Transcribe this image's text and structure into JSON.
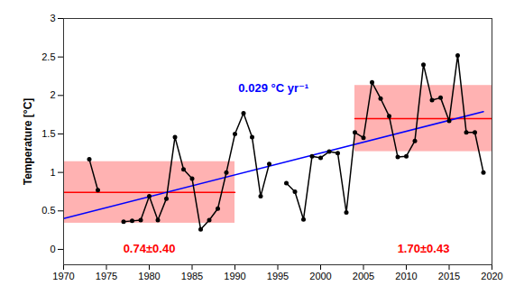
{
  "chart_data": {
    "type": "line",
    "y_label": "Temperature [°C]",
    "x": [
      1973,
      1974,
      1975,
      1976,
      1977,
      1978,
      1979,
      1980,
      1981,
      1982,
      1983,
      1984,
      1985,
      1986,
      1987,
      1988,
      1989,
      1990,
      1991,
      1992,
      1993,
      1994,
      1995,
      1996,
      1997,
      1998,
      1999,
      2000,
      2001,
      2002,
      2003,
      2004,
      2005,
      2006,
      2007,
      2008,
      2009,
      2010,
      2011,
      2012,
      2013,
      2014,
      2015,
      2016,
      2017,
      2018,
      2019
    ],
    "series": [
      {
        "color": "#000000",
        "marker": "circle",
        "values": [
          1.17,
          0.77,
          null,
          null,
          0.36,
          0.37,
          0.38,
          0.69,
          0.38,
          0.66,
          1.46,
          1.04,
          0.92,
          0.26,
          0.38,
          0.53,
          1.0,
          1.5,
          1.77,
          1.46,
          0.69,
          1.11,
          null,
          0.86,
          0.75,
          0.39,
          1.21,
          1.19,
          1.27,
          1.25,
          0.48,
          1.52,
          1.45,
          2.17,
          1.96,
          1.73,
          1.2,
          1.21,
          1.41,
          2.4,
          1.94,
          1.97,
          1.67,
          2.52,
          1.52,
          1.52,
          1.0
        ]
      }
    ],
    "trend": {
      "x": [
        1970,
        2019
      ],
      "values": [
        0.4,
        1.79
      ],
      "color": "#0000ff",
      "label": "0.029 °C yr⁻¹"
    },
    "periods": [
      {
        "x": [
          1970,
          1990
        ],
        "mean": 0.74,
        "std": 0.4,
        "color": "#ff0000",
        "label": "0.74±0.40"
      },
      {
        "x": [
          2004,
          2020
        ],
        "mean": 1.7,
        "std": 0.43,
        "color": "#ff0000",
        "label": "1.70±0.43"
      }
    ],
    "xlim": [
      1970,
      2020
    ],
    "xticks": [
      1970,
      1975,
      1980,
      1985,
      1990,
      1995,
      2000,
      2005,
      2010,
      2015,
      2020
    ],
    "ylim": [
      -0.2,
      3
    ],
    "yticks": [
      0,
      0.5,
      1,
      1.5,
      2,
      2.5,
      3
    ]
  }
}
